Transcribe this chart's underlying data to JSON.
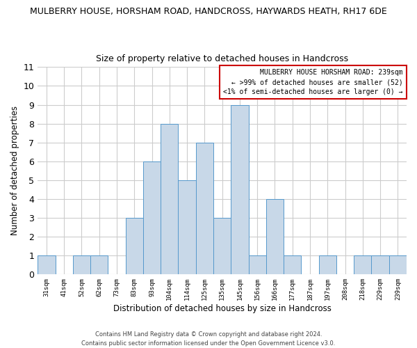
{
  "title_line1": "MULBERRY HOUSE, HORSHAM ROAD, HANDCROSS, HAYWARDS HEATH, RH17 6DE",
  "title_line2": "Size of property relative to detached houses in Handcross",
  "xlabel": "Distribution of detached houses by size in Handcross",
  "ylabel": "Number of detached properties",
  "bin_labels": [
    "31sqm",
    "41sqm",
    "52sqm",
    "62sqm",
    "73sqm",
    "83sqm",
    "93sqm",
    "104sqm",
    "114sqm",
    "125sqm",
    "135sqm",
    "145sqm",
    "156sqm",
    "166sqm",
    "177sqm",
    "187sqm",
    "197sqm",
    "208sqm",
    "218sqm",
    "229sqm",
    "239sqm"
  ],
  "bar_heights": [
    1,
    0,
    1,
    1,
    0,
    3,
    6,
    8,
    5,
    7,
    3,
    9,
    1,
    4,
    1,
    0,
    1,
    0,
    1,
    1,
    1
  ],
  "bar_color": "#c8d8e8",
  "bar_edge_color": "#5599cc",
  "highlight_bin_index": 20,
  "ylim": [
    0,
    11
  ],
  "yticks": [
    0,
    1,
    2,
    3,
    4,
    5,
    6,
    7,
    8,
    9,
    10,
    11
  ],
  "grid_color": "#cccccc",
  "legend_title": "MULBERRY HOUSE HORSHAM ROAD: 239sqm",
  "legend_line1": "← >99% of detached houses are smaller (52)",
  "legend_line2": "<1% of semi-detached houses are larger (0) →",
  "legend_box_color": "#ffffff",
  "legend_box_edge_color": "#cc0000",
  "footer_line1": "Contains HM Land Registry data © Crown copyright and database right 2024.",
  "footer_line2": "Contains public sector information licensed under the Open Government Licence v3.0.",
  "background_color": "#ffffff"
}
